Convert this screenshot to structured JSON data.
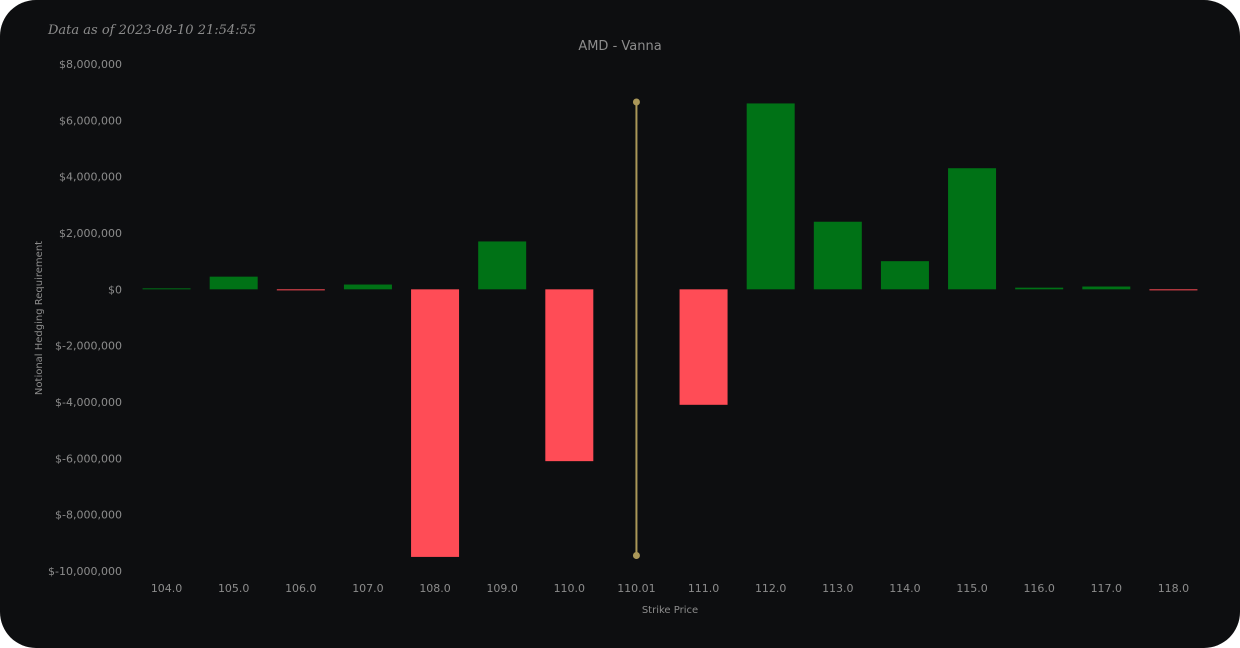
{
  "as_of_text": "Data as of 2023-08-10 21:54:55",
  "colors": {
    "positive": "#007216",
    "negative": "#ff4c56",
    "spot_line": "#aa9758",
    "text": "#8c8c8c",
    "background": "#0d0e10"
  },
  "chart_data": {
    "type": "bar",
    "title": "AMD - Vanna",
    "xlabel": "Strike Price",
    "ylabel": "Notional Hedging Requirement",
    "ylim": [
      -10000000,
      8000000
    ],
    "yticks": [
      8000000,
      6000000,
      4000000,
      2000000,
      0,
      -2000000,
      -4000000,
      -6000000,
      -8000000,
      -10000000
    ],
    "ytick_labels": [
      "$8,000,000",
      "$6,000,000",
      "$4,000,000",
      "$2,000,000",
      "$0",
      "$-2,000,000",
      "$-4,000,000",
      "$-6,000,000",
      "$-8,000,000",
      "$-10,000,000"
    ],
    "categories": [
      "104.0",
      "105.0",
      "106.0",
      "107.0",
      "108.0",
      "109.0",
      "110.0",
      "110.01",
      "111.0",
      "112.0",
      "113.0",
      "114.0",
      "115.0",
      "116.0",
      "117.0",
      "118.0"
    ],
    "values": [
      20000,
      450000,
      -30000,
      170000,
      -9500000,
      1700000,
      -6100000,
      null,
      -4100000,
      6600000,
      2400000,
      1000000,
      4300000,
      60000,
      100000,
      -30000
    ],
    "spot_marker": {
      "category": "110.01",
      "y_range": [
        -9450000,
        6650000
      ]
    },
    "grid": false,
    "legend": "none"
  }
}
